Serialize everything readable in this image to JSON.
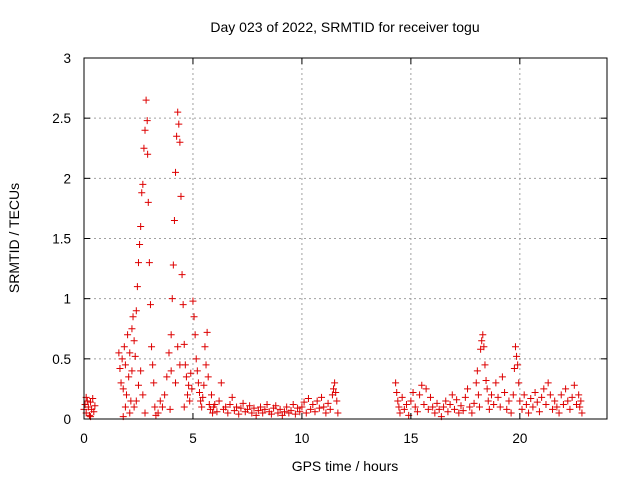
{
  "chart_data": {
    "type": "scatter",
    "title": "Day 023 of 2022, SRMTID for receiver togu",
    "xlabel": "GPS time / hours",
    "ylabel": "SRMTID / TECUs",
    "xlim": [
      0,
      24
    ],
    "ylim": [
      0,
      3
    ],
    "x_ticks": [
      0,
      5,
      10,
      15,
      20
    ],
    "x_tick_labels": [
      "0",
      "5",
      "10",
      "15",
      "20"
    ],
    "y_ticks": [
      0,
      0.5,
      1,
      1.5,
      2,
      2.5,
      3
    ],
    "y_tick_labels": [
      "0",
      "0.5",
      "1",
      "1.5",
      "2",
      "2.5",
      "3"
    ],
    "grid": true,
    "marker": "+",
    "color": "#dd0000",
    "series": [
      {
        "name": "SRMTID",
        "points": [
          [
            0.0,
            0.08
          ],
          [
            0.05,
            0.12
          ],
          [
            0.1,
            0.05
          ],
          [
            0.15,
            0.15
          ],
          [
            0.2,
            0.1
          ],
          [
            0.25,
            0.03
          ],
          [
            0.3,
            0.14
          ],
          [
            0.35,
            0.08
          ],
          [
            0.4,
            0.17
          ],
          [
            0.45,
            0.06
          ],
          [
            0.5,
            0.11
          ],
          [
            0.1,
            0.18
          ],
          [
            0.3,
            0.02
          ],
          [
            1.6,
            0.55
          ],
          [
            1.65,
            0.42
          ],
          [
            1.7,
            0.3
          ],
          [
            1.75,
            0.5
          ],
          [
            1.8,
            0.25
          ],
          [
            1.85,
            0.6
          ],
          [
            1.9,
            0.45
          ],
          [
            1.95,
            0.2
          ],
          [
            2.0,
            0.7
          ],
          [
            2.05,
            0.35
          ],
          [
            2.1,
            0.05
          ],
          [
            2.15,
            0.15
          ],
          [
            2.2,
            0.75
          ],
          [
            2.25,
            0.85
          ],
          [
            2.3,
            0.65
          ],
          [
            2.35,
            0.52
          ],
          [
            2.4,
            0.9
          ],
          [
            2.45,
            1.1
          ],
          [
            2.5,
            1.3
          ],
          [
            2.55,
            1.45
          ],
          [
            2.6,
            1.6
          ],
          [
            2.65,
            1.88
          ],
          [
            2.7,
            1.95
          ],
          [
            2.75,
            2.25
          ],
          [
            2.8,
            2.4
          ],
          [
            2.85,
            2.65
          ],
          [
            2.9,
            2.48
          ],
          [
            2.92,
            2.2
          ],
          [
            2.95,
            1.8
          ],
          [
            3.0,
            1.3
          ],
          [
            3.05,
            0.95
          ],
          [
            3.1,
            0.6
          ],
          [
            3.15,
            0.45
          ],
          [
            3.2,
            0.3
          ],
          [
            3.25,
            0.1
          ],
          [
            3.3,
            0.03
          ],
          [
            2.6,
            0.4
          ],
          [
            2.7,
            0.2
          ],
          [
            2.8,
            0.05
          ],
          [
            2.5,
            0.28
          ],
          [
            2.4,
            0.15
          ],
          [
            2.3,
            0.1
          ],
          [
            2.2,
            0.4
          ],
          [
            2.1,
            0.55
          ],
          [
            1.9,
            0.1
          ],
          [
            1.8,
            0.02
          ],
          [
            3.4,
            0.05
          ],
          [
            3.5,
            0.15
          ],
          [
            3.6,
            0.1
          ],
          [
            3.7,
            0.2
          ],
          [
            3.8,
            0.35
          ],
          [
            3.9,
            0.55
          ],
          [
            4.0,
            0.7
          ],
          [
            4.05,
            1.0
          ],
          [
            4.1,
            1.28
          ],
          [
            4.15,
            1.65
          ],
          [
            4.2,
            2.05
          ],
          [
            4.25,
            2.35
          ],
          [
            4.3,
            2.55
          ],
          [
            4.35,
            2.45
          ],
          [
            4.4,
            2.3
          ],
          [
            4.45,
            1.85
          ],
          [
            4.5,
            1.2
          ],
          [
            4.55,
            0.95
          ],
          [
            4.6,
            0.62
          ],
          [
            4.65,
            0.45
          ],
          [
            4.7,
            0.35
          ],
          [
            4.75,
            0.2
          ],
          [
            4.8,
            0.28
          ],
          [
            4.85,
            0.15
          ],
          [
            4.9,
            0.38
          ],
          [
            4.95,
            0.25
          ],
          [
            4.0,
            0.4
          ],
          [
            4.2,
            0.3
          ],
          [
            4.4,
            0.45
          ],
          [
            4.6,
            0.1
          ],
          [
            3.95,
            0.08
          ],
          [
            4.3,
            0.6
          ],
          [
            5.0,
            0.98
          ],
          [
            5.05,
            0.85
          ],
          [
            5.1,
            0.7
          ],
          [
            5.15,
            0.5
          ],
          [
            5.2,
            0.4
          ],
          [
            5.25,
            0.3
          ],
          [
            5.3,
            0.22
          ],
          [
            5.35,
            0.15
          ],
          [
            5.4,
            0.1
          ],
          [
            5.45,
            0.18
          ],
          [
            5.5,
            0.28
          ],
          [
            5.55,
            0.6
          ],
          [
            5.6,
            0.45
          ],
          [
            5.65,
            0.72
          ],
          [
            5.7,
            0.35
          ],
          [
            5.75,
            0.12
          ],
          [
            5.8,
            0.08
          ],
          [
            5.85,
            0.2
          ],
          [
            5.9,
            0.05
          ],
          [
            5.95,
            0.1
          ],
          [
            6.0,
            0.12
          ],
          [
            6.1,
            0.06
          ],
          [
            6.2,
            0.15
          ],
          [
            6.3,
            0.3
          ],
          [
            6.4,
            0.08
          ],
          [
            6.5,
            0.1
          ],
          [
            6.6,
            0.05
          ],
          [
            6.7,
            0.12
          ],
          [
            6.8,
            0.18
          ],
          [
            6.9,
            0.07
          ],
          [
            7.0,
            0.1
          ],
          [
            7.1,
            0.04
          ],
          [
            7.2,
            0.09
          ],
          [
            7.3,
            0.13
          ],
          [
            7.4,
            0.06
          ],
          [
            7.5,
            0.08
          ],
          [
            7.6,
            0.11
          ],
          [
            7.7,
            0.05
          ],
          [
            7.8,
            0.09
          ],
          [
            7.9,
            0.03
          ],
          [
            8.0,
            0.07
          ],
          [
            8.1,
            0.1
          ],
          [
            8.2,
            0.05
          ],
          [
            8.3,
            0.08
          ],
          [
            8.4,
            0.12
          ],
          [
            8.5,
            0.06
          ],
          [
            8.6,
            0.04
          ],
          [
            8.7,
            0.09
          ],
          [
            8.8,
            0.11
          ],
          [
            8.9,
            0.05
          ],
          [
            9.0,
            0.08
          ],
          [
            9.1,
            0.03
          ],
          [
            9.2,
            0.06
          ],
          [
            9.3,
            0.1
          ],
          [
            9.4,
            0.05
          ],
          [
            9.5,
            0.07
          ],
          [
            9.6,
            0.12
          ],
          [
            9.7,
            0.04
          ],
          [
            9.8,
            0.09
          ],
          [
            9.9,
            0.06
          ],
          [
            10.0,
            0.1
          ],
          [
            10.1,
            0.14
          ],
          [
            10.2,
            0.05
          ],
          [
            10.3,
            0.17
          ],
          [
            10.4,
            0.08
          ],
          [
            10.5,
            0.12
          ],
          [
            10.6,
            0.06
          ],
          [
            10.7,
            0.15
          ],
          [
            10.8,
            0.09
          ],
          [
            10.9,
            0.18
          ],
          [
            11.0,
            0.1
          ],
          [
            11.1,
            0.05
          ],
          [
            11.2,
            0.13
          ],
          [
            11.3,
            0.08
          ],
          [
            11.4,
            0.2
          ],
          [
            11.45,
            0.25
          ],
          [
            11.5,
            0.3
          ],
          [
            11.55,
            0.22
          ],
          [
            11.6,
            0.15
          ],
          [
            11.65,
            0.05
          ],
          [
            14.3,
            0.3
          ],
          [
            14.35,
            0.22
          ],
          [
            14.4,
            0.15
          ],
          [
            14.45,
            0.1
          ],
          [
            14.5,
            0.05
          ],
          [
            14.6,
            0.18
          ],
          [
            14.7,
            0.08
          ],
          [
            14.8,
            0.12
          ],
          [
            14.9,
            0.03
          ],
          [
            15.0,
            0.15
          ],
          [
            15.1,
            0.22
          ],
          [
            15.2,
            0.1
          ],
          [
            15.3,
            0.06
          ],
          [
            15.4,
            0.2
          ],
          [
            15.5,
            0.28
          ],
          [
            15.6,
            0.12
          ],
          [
            15.7,
            0.25
          ],
          [
            15.8,
            0.08
          ],
          [
            15.9,
            0.18
          ],
          [
            16.0,
            0.1
          ],
          [
            16.1,
            0.05
          ],
          [
            16.2,
            0.13
          ],
          [
            16.3,
            0.08
          ],
          [
            16.4,
            0.02
          ],
          [
            16.5,
            0.1
          ],
          [
            16.6,
            0.15
          ],
          [
            16.7,
            0.06
          ],
          [
            16.8,
            0.12
          ],
          [
            16.9,
            0.2
          ],
          [
            17.0,
            0.08
          ],
          [
            17.1,
            0.16
          ],
          [
            17.2,
            0.05
          ],
          [
            17.3,
            0.11
          ],
          [
            17.4,
            0.07
          ],
          [
            17.5,
            0.18
          ],
          [
            17.6,
            0.25
          ],
          [
            17.7,
            0.1
          ],
          [
            17.8,
            0.05
          ],
          [
            17.9,
            0.13
          ],
          [
            18.0,
            0.3
          ],
          [
            18.05,
            0.4
          ],
          [
            18.1,
            0.2
          ],
          [
            18.15,
            0.1
          ],
          [
            18.2,
            0.58
          ],
          [
            18.25,
            0.65
          ],
          [
            18.3,
            0.7
          ],
          [
            18.35,
            0.6
          ],
          [
            18.4,
            0.45
          ],
          [
            18.45,
            0.32
          ],
          [
            18.5,
            0.25
          ],
          [
            18.55,
            0.15
          ],
          [
            18.6,
            0.08
          ],
          [
            18.7,
            0.2
          ],
          [
            18.8,
            0.12
          ],
          [
            18.9,
            0.3
          ],
          [
            19.0,
            0.18
          ],
          [
            19.1,
            0.1
          ],
          [
            19.2,
            0.35
          ],
          [
            19.3,
            0.22
          ],
          [
            19.4,
            0.08
          ],
          [
            19.5,
            0.15
          ],
          [
            19.6,
            0.05
          ],
          [
            19.7,
            0.2
          ],
          [
            19.75,
            0.42
          ],
          [
            19.8,
            0.6
          ],
          [
            19.85,
            0.52
          ],
          [
            19.9,
            0.45
          ],
          [
            19.95,
            0.3
          ],
          [
            20.0,
            0.15
          ],
          [
            20.1,
            0.08
          ],
          [
            20.2,
            0.2
          ],
          [
            20.3,
            0.12
          ],
          [
            20.4,
            0.05
          ],
          [
            20.5,
            0.17
          ],
          [
            20.6,
            0.1
          ],
          [
            20.7,
            0.22
          ],
          [
            20.8,
            0.14
          ],
          [
            20.9,
            0.06
          ],
          [
            21.0,
            0.18
          ],
          [
            21.1,
            0.25
          ],
          [
            21.2,
            0.12
          ],
          [
            21.3,
            0.3
          ],
          [
            21.4,
            0.2
          ],
          [
            21.5,
            0.08
          ],
          [
            21.6,
            0.15
          ],
          [
            21.7,
            0.1
          ],
          [
            21.8,
            0.05
          ],
          [
            21.9,
            0.2
          ],
          [
            22.0,
            0.12
          ],
          [
            22.1,
            0.25
          ],
          [
            22.2,
            0.15
          ],
          [
            22.3,
            0.08
          ],
          [
            22.4,
            0.18
          ],
          [
            22.5,
            0.28
          ],
          [
            22.6,
            0.12
          ],
          [
            22.7,
            0.2
          ],
          [
            22.75,
            0.1
          ],
          [
            22.8,
            0.15
          ],
          [
            22.85,
            0.05
          ]
        ]
      }
    ]
  }
}
